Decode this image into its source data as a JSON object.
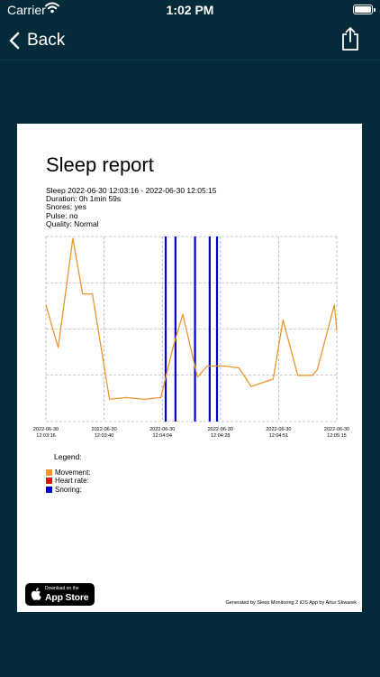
{
  "status_bar": {
    "carrier": "Carrier",
    "time": "1:02 PM"
  },
  "nav": {
    "back_label": "Back",
    "back_icon": "chevron-left-icon",
    "share_icon": "share-icon"
  },
  "report": {
    "title": "Sleep report",
    "sleep_line": "Sleep 2022-06-30 12:03:16 - 2022-06-30 12:05:15",
    "duration_line": "Duration: 0h 1min 59s",
    "snores_line": "Snores: yes",
    "pulse_line": "Pulse: no",
    "quality_line": "Quality: Normal"
  },
  "chart_data": {
    "type": "line",
    "x_tick_labels": [
      [
        "2022-06-30",
        "12:03:16"
      ],
      [
        "2022-06-30",
        "12:03:40"
      ],
      [
        "2022-06-30",
        "12:04:04"
      ],
      [
        "2022-06-30",
        "12:04:28"
      ],
      [
        "2022-06-30",
        "12:04:51"
      ],
      [
        "2022-06-30",
        "12:05:15"
      ]
    ],
    "xlim": [
      0,
      119
    ],
    "ylim": [
      0,
      1
    ],
    "grid": true,
    "series": [
      {
        "name": "Movement:",
        "color": "#f0952a",
        "x": [
          0,
          5,
          11,
          15,
          19,
          26,
          33,
          40,
          47,
          52,
          56,
          62,
          66,
          73,
          79,
          84,
          93,
          97,
          103,
          109,
          111,
          118,
          119
        ],
        "y": [
          0.63,
          0.4,
          0.99,
          0.69,
          0.69,
          0.12,
          0.13,
          0.12,
          0.13,
          0.4,
          0.58,
          0.24,
          0.3,
          0.3,
          0.29,
          0.19,
          0.23,
          0.55,
          0.25,
          0.25,
          0.28,
          0.63,
          0.49
        ]
      }
    ],
    "snoring_x": [
      49,
      53,
      61,
      67,
      70
    ],
    "snoring_color": "#0000cc"
  },
  "legend": {
    "title": "Legend:",
    "items": [
      {
        "label": "Movement:",
        "color": "#f0952a"
      },
      {
        "label": "Heart rate:",
        "color": "#e01010"
      },
      {
        "label": "Snoring:",
        "color": "#0000cc"
      }
    ]
  },
  "badge": {
    "small": "Download on the",
    "big": "App Store"
  },
  "footer": {
    "note": "Generated by Sleep Monitoring 2 iOS App by Artur Skwarek"
  }
}
